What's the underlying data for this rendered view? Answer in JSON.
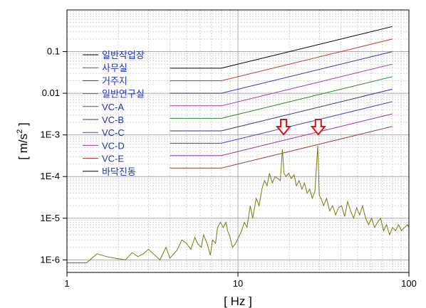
{
  "chart_data": {
    "type": "line",
    "xlabel": "[ Hz ]",
    "ylabel": "[ m/s2 ]",
    "ylabel_parts": {
      "prefix": "[ m/s",
      "superscript": "2",
      "suffix": " ]"
    },
    "x_scale": "log",
    "y_scale": "log",
    "xlim": [
      1,
      100
    ],
    "ylim": [
      5e-07,
      1
    ],
    "x_ticks": [
      {
        "value": 1,
        "label": "1"
      },
      {
        "value": 10,
        "label": "10"
      },
      {
        "value": 100,
        "label": "100"
      }
    ],
    "y_ticks": [
      {
        "value": 1e-06,
        "label": "1E-6"
      },
      {
        "value": 1e-05,
        "label": "1E-5"
      },
      {
        "value": 0.0001,
        "label": "1E-4"
      },
      {
        "value": 0.001,
        "label": "1E-3"
      },
      {
        "value": 0.01,
        "label": "0.01"
      },
      {
        "value": 0.1,
        "label": "0.1"
      }
    ],
    "grid": true,
    "legend_position": "top-left",
    "criteria_series": [
      {
        "name": "일반작업장",
        "color": "#000000",
        "flat_level": 0.04,
        "level_at_80hz": 0.4
      },
      {
        "name": "사무실",
        "color": "#cc3333",
        "flat_level": 0.02,
        "level_at_80hz": 0.2
      },
      {
        "name": "거주지",
        "color": "#3333aa",
        "flat_level": 0.01,
        "level_at_80hz": 0.1
      },
      {
        "name": "일반연구실",
        "color": "#aa33aa",
        "flat_level": 0.005,
        "level_at_80hz": 0.05
      },
      {
        "name": "VC-A",
        "color": "#228822",
        "flat_level": 0.0025,
        "level_at_80hz": 0.025
      },
      {
        "name": "VC-B",
        "color": "#333388",
        "flat_level": 0.00125,
        "level_at_80hz": 0.0125
      },
      {
        "name": "VC-C",
        "color": "#4444cc",
        "flat_level": 0.00063,
        "level_at_80hz": 0.0063
      },
      {
        "name": "VC-D",
        "color": "#993399",
        "flat_level": 0.00032,
        "level_at_80hz": 0.0032
      },
      {
        "name": "VC-E",
        "color": "#993333",
        "flat_level": 0.00016,
        "level_at_80hz": 0.0016
      }
    ],
    "criteria_x": [
      4,
      8,
      80
    ],
    "measured_series": {
      "name": "바닥진동",
      "color": "#7a7a10",
      "x": [
        1,
        1.3,
        1.5,
        1.7,
        1.9,
        2.2,
        2.4,
        2.6,
        2.8,
        3.0,
        3.2,
        3.5,
        3.8,
        4.0,
        4.4,
        4.7,
        5.0,
        5.3,
        5.6,
        5.8,
        6.1,
        6.3,
        6.6,
        6.9,
        7.1,
        7.4,
        7.6,
        7.9,
        8.2,
        8.5,
        8.7,
        9.0,
        9.3,
        9.7,
        10.1,
        10.5,
        10.9,
        11.3,
        11.8,
        12.2,
        12.8,
        13.3,
        13.8,
        14.3,
        14.8,
        15.3,
        15.9,
        16.5,
        17.1,
        17.7,
        18.2,
        18.6,
        19.1,
        19.8,
        20.5,
        21.3,
        22.0,
        22.8,
        23.7,
        24.5,
        25.4,
        26.3,
        27.2,
        28.2,
        29.3,
        29.9,
        30.6,
        31.7,
        33.0,
        34.4,
        35.8,
        37.3,
        38.8,
        40.4,
        42.1,
        43.8,
        45.6,
        47.5,
        49.5,
        51.5,
        53.6,
        55.8,
        58.1,
        60.5,
        63.0,
        65.6,
        68.3,
        71.1,
        74.0,
        77.1,
        80.2,
        83.5,
        87.0,
        90.5,
        94.3,
        98.1,
        100
      ],
      "y": [
        8.5e-07,
        8.5e-07,
        1.4e-06,
        1.2e-06,
        1.1e-06,
        1e-06,
        1.5e-06,
        1.2e-06,
        1.4e-06,
        1.8e-06,
        1.4e-06,
        1e-06,
        2e-06,
        1.1e-06,
        1.7e-06,
        3e-06,
        2.5e-06,
        1.8e-06,
        3.5e-06,
        2.5e-06,
        2e-06,
        4e-06,
        2.5e-06,
        1.3e-06,
        3e-06,
        2.5e-06,
        6e-06,
        8e-06,
        6e-06,
        8e-06,
        5e-06,
        3.5e-06,
        2e-06,
        2.5e-06,
        3.5e-06,
        5e-06,
        8e-06,
        6e-06,
        2e-05,
        1e-05,
        3e-05,
        2e-05,
        5e-05,
        8e-05,
        6e-05,
        0.00012,
        7e-05,
        0.0001,
        9e-05,
        8e-05,
        0.00045,
        0.00012,
        0.0001,
        0.00012,
        9e-05,
        0.00011,
        6e-05,
        8e-05,
        5e-05,
        7e-05,
        4e-05,
        5e-05,
        3e-05,
        4.5e-05,
        0.00055,
        3.5e-05,
        3e-05,
        2e-05,
        3e-05,
        1.5e-05,
        2e-05,
        1.2e-05,
        1.8e-05,
        2e-05,
        1.1e-05,
        2.5e-05,
        1.5e-05,
        1e-05,
        1.8e-05,
        1.2e-05,
        2e-05,
        1e-05,
        7e-06,
        1e-05,
        6e-06,
        8e-06,
        1e-05,
        5e-06,
        7e-06,
        4e-06,
        6e-06,
        5e-06,
        7e-06,
        5e-06,
        6e-06,
        7e-06,
        6e-06
      ]
    },
    "annotations": [
      {
        "type": "down-arrow",
        "x": 18.5,
        "y": 0.0013,
        "color": "#dd1111"
      },
      {
        "type": "down-arrow",
        "x": 29.5,
        "y": 0.0013,
        "color": "#dd1111"
      }
    ]
  }
}
